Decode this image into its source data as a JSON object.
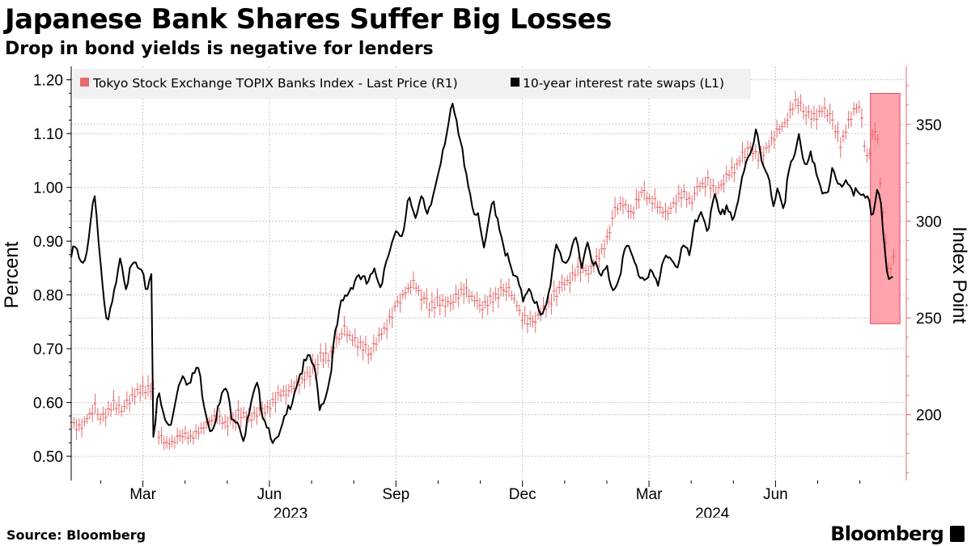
{
  "header": {
    "title": "Japanese Bank Shares Suffer Big Losses",
    "subtitle": "Drop in bond yields is negative for lenders"
  },
  "footer": {
    "source": "Source: Bloomberg",
    "brand": "Bloomberg"
  },
  "colors": {
    "swaps_line": "#000000",
    "banks_index": "#e8696b",
    "highlight_fill": "#ffa3ad",
    "highlight_stroke": "#e8485a",
    "right_axis": "#e8696b",
    "grid": "#c8c8c8",
    "legend_bg": "#f1f1f1"
  },
  "chart_data": {
    "type": "line",
    "title": "Japanese Bank Shares Suffer Big Losses",
    "subtitle": "Drop in bond yields is negative for lenders",
    "left_axis": {
      "label": "Percent",
      "ylim": [
        0.455,
        1.225
      ],
      "ticks": [
        0.5,
        0.6,
        0.7,
        0.8,
        0.9,
        1.0,
        1.1,
        1.2
      ],
      "tick_labels": [
        "0.50",
        "0.60",
        "0.70",
        "0.80",
        "0.90",
        "1.00",
        "1.10",
        "1.20"
      ]
    },
    "right_axis": {
      "label": "Index Point",
      "ylim": [
        166,
        380
      ],
      "ticks": [
        200,
        250,
        300,
        350
      ],
      "tick_labels": [
        "200",
        "250",
        "300",
        "350"
      ]
    },
    "x_axis": {
      "range_months": [
        0.3,
        20.1
      ],
      "month_ticks": [
        {
          "label": "Mar",
          "pos": 2.0
        },
        {
          "label": "Jun",
          "pos": 5.0
        },
        {
          "label": "Sep",
          "pos": 8.0
        },
        {
          "label": "Dec",
          "pos": 11.0
        },
        {
          "label": "Mar",
          "pos": 14.0
        },
        {
          "label": "Jun",
          "pos": 17.0
        }
      ],
      "year_labels": [
        {
          "label": "2023",
          "pos": 5.5
        },
        {
          "label": "2024",
          "pos": 15.5
        }
      ],
      "minor_ticks": [
        1,
        3,
        4,
        6,
        7,
        9,
        10,
        12,
        13,
        15,
        16,
        18,
        19
      ]
    },
    "legend": {
      "position": "top-left",
      "entries": [
        {
          "name": "Tokyo Stock Exchange TOPIX Banks Index - Last Price (R1)",
          "color": "#e8696b"
        },
        {
          "name": "10-year interest rate swaps (L1)",
          "color": "#000000"
        }
      ]
    },
    "highlight": {
      "x_from": 19.25,
      "x_to": 19.95,
      "y_low": 247,
      "y_high": 366,
      "axis": "right"
    },
    "series": [
      {
        "name": "10-year interest rate swaps (L1)",
        "axis": "left",
        "style": "line",
        "points": [
          [
            0.3,
            0.87
          ],
          [
            0.4,
            0.89
          ],
          [
            0.5,
            0.86
          ],
          [
            0.6,
            0.85
          ],
          [
            0.75,
            0.93
          ],
          [
            0.85,
            1.0
          ],
          [
            0.95,
            0.9
          ],
          [
            1.05,
            0.8
          ],
          [
            1.15,
            0.74
          ],
          [
            1.3,
            0.79
          ],
          [
            1.45,
            0.88
          ],
          [
            1.6,
            0.82
          ],
          [
            1.8,
            0.86
          ],
          [
            2.0,
            0.83
          ],
          [
            2.1,
            0.81
          ],
          [
            2.2,
            0.85
          ],
          [
            2.25,
            0.53
          ],
          [
            2.35,
            0.62
          ],
          [
            2.5,
            0.57
          ],
          [
            2.65,
            0.55
          ],
          [
            2.8,
            0.62
          ],
          [
            2.95,
            0.66
          ],
          [
            3.1,
            0.63
          ],
          [
            3.3,
            0.67
          ],
          [
            3.45,
            0.6
          ],
          [
            3.6,
            0.55
          ],
          [
            3.8,
            0.59
          ],
          [
            3.95,
            0.63
          ],
          [
            4.1,
            0.58
          ],
          [
            4.25,
            0.57
          ],
          [
            4.4,
            0.53
          ],
          [
            4.55,
            0.59
          ],
          [
            4.7,
            0.63
          ],
          [
            4.85,
            0.58
          ],
          [
            5.0,
            0.55
          ],
          [
            5.15,
            0.52
          ],
          [
            5.3,
            0.55
          ],
          [
            5.5,
            0.6
          ],
          [
            5.7,
            0.65
          ],
          [
            5.9,
            0.68
          ],
          [
            6.05,
            0.67
          ],
          [
            6.2,
            0.59
          ],
          [
            6.4,
            0.63
          ],
          [
            6.55,
            0.72
          ],
          [
            6.7,
            0.78
          ],
          [
            6.9,
            0.81
          ],
          [
            7.1,
            0.84
          ],
          [
            7.3,
            0.82
          ],
          [
            7.5,
            0.84
          ],
          [
            7.65,
            0.82
          ],
          [
            7.8,
            0.88
          ],
          [
            8.0,
            0.91
          ],
          [
            8.15,
            0.9
          ],
          [
            8.3,
            0.99
          ],
          [
            8.45,
            0.95
          ],
          [
            8.6,
            0.98
          ],
          [
            8.75,
            0.94
          ],
          [
            8.9,
            0.99
          ],
          [
            9.1,
            1.07
          ],
          [
            9.25,
            1.12
          ],
          [
            9.35,
            1.15
          ],
          [
            9.5,
            1.09
          ],
          [
            9.65,
            1.04
          ],
          [
            9.8,
            0.97
          ],
          [
            9.95,
            0.94
          ],
          [
            10.1,
            0.88
          ],
          [
            10.3,
            0.98
          ],
          [
            10.45,
            0.93
          ],
          [
            10.6,
            0.88
          ],
          [
            10.75,
            0.84
          ],
          [
            10.9,
            0.82
          ],
          [
            11.0,
            0.79
          ],
          [
            11.15,
            0.82
          ],
          [
            11.3,
            0.79
          ],
          [
            11.45,
            0.75
          ],
          [
            11.6,
            0.79
          ],
          [
            11.8,
            0.9
          ],
          [
            11.95,
            0.87
          ],
          [
            12.1,
            0.85
          ],
          [
            12.25,
            0.91
          ],
          [
            12.4,
            0.86
          ],
          [
            12.55,
            0.9
          ],
          [
            12.7,
            0.86
          ],
          [
            12.85,
            0.83
          ],
          [
            13.0,
            0.85
          ],
          [
            13.15,
            0.81
          ],
          [
            13.3,
            0.84
          ],
          [
            13.45,
            0.89
          ],
          [
            13.6,
            0.87
          ],
          [
            13.75,
            0.84
          ],
          [
            13.9,
            0.83
          ],
          [
            14.05,
            0.85
          ],
          [
            14.2,
            0.81
          ],
          [
            14.35,
            0.86
          ],
          [
            14.5,
            0.88
          ],
          [
            14.65,
            0.85
          ],
          [
            14.8,
            0.89
          ],
          [
            14.95,
            0.87
          ],
          [
            15.1,
            0.93
          ],
          [
            15.25,
            0.96
          ],
          [
            15.4,
            0.92
          ],
          [
            15.55,
            0.98
          ],
          [
            15.7,
            0.94
          ],
          [
            15.85,
            0.97
          ],
          [
            16.0,
            0.94
          ],
          [
            16.15,
            0.99
          ],
          [
            16.3,
            1.04
          ],
          [
            16.45,
            1.07
          ],
          [
            16.55,
            1.12
          ],
          [
            16.65,
            1.06
          ],
          [
            16.8,
            1.03
          ],
          [
            16.95,
            0.96
          ],
          [
            17.05,
            0.99
          ],
          [
            17.2,
            0.96
          ],
          [
            17.3,
            1.04
          ],
          [
            17.45,
            1.06
          ],
          [
            17.55,
            1.09
          ],
          [
            17.7,
            1.03
          ],
          [
            17.85,
            1.06
          ],
          [
            18.0,
            1.03
          ],
          [
            18.1,
            1.0
          ],
          [
            18.25,
            0.98
          ],
          [
            18.35,
            1.03
          ],
          [
            18.5,
            1.0
          ],
          [
            18.65,
            1.02
          ],
          [
            18.8,
            1.0
          ],
          [
            19.0,
            0.98
          ],
          [
            19.15,
            0.98
          ],
          [
            19.3,
            0.95
          ],
          [
            19.4,
            1.0
          ],
          [
            19.5,
            0.98
          ],
          [
            19.57,
            0.9
          ],
          [
            19.62,
            0.84
          ],
          [
            19.7,
            0.82
          ],
          [
            19.78,
            0.83
          ]
        ]
      },
      {
        "name": "Tokyo Stock Exchange TOPIX Banks Index - Last Price (R1)",
        "axis": "right",
        "style": "candles",
        "points": [
          [
            0.3,
            196
          ],
          [
            0.5,
            194
          ],
          [
            0.65,
            197
          ],
          [
            0.85,
            204
          ],
          [
            1.0,
            198
          ],
          [
            1.15,
            201
          ],
          [
            1.3,
            205
          ],
          [
            1.5,
            202
          ],
          [
            1.7,
            208
          ],
          [
            1.9,
            213
          ],
          [
            2.1,
            212
          ],
          [
            2.25,
            215
          ],
          [
            2.35,
            190
          ],
          [
            2.55,
            185
          ],
          [
            2.75,
            186
          ],
          [
            2.95,
            190
          ],
          [
            3.15,
            188
          ],
          [
            3.35,
            192
          ],
          [
            3.55,
            196
          ],
          [
            3.75,
            199
          ],
          [
            3.95,
            195
          ],
          [
            4.15,
            199
          ],
          [
            4.35,
            201
          ],
          [
            4.55,
            198
          ],
          [
            4.75,
            202
          ],
          [
            4.95,
            203
          ],
          [
            5.15,
            209
          ],
          [
            5.35,
            212
          ],
          [
            5.55,
            214
          ],
          [
            5.75,
            218
          ],
          [
            6.0,
            223
          ],
          [
            6.2,
            230
          ],
          [
            6.4,
            229
          ],
          [
            6.6,
            238
          ],
          [
            6.8,
            244
          ],
          [
            7.0,
            238
          ],
          [
            7.2,
            236
          ],
          [
            7.4,
            232
          ],
          [
            7.6,
            240
          ],
          [
            7.8,
            247
          ],
          [
            8.0,
            257
          ],
          [
            8.2,
            263
          ],
          [
            8.4,
            268
          ],
          [
            8.6,
            262
          ],
          [
            8.8,
            255
          ],
          [
            9.0,
            259
          ],
          [
            9.2,
            258
          ],
          [
            9.4,
            260
          ],
          [
            9.6,
            265
          ],
          [
            9.8,
            261
          ],
          [
            10.0,
            255
          ],
          [
            10.2,
            259
          ],
          [
            10.4,
            262
          ],
          [
            10.6,
            266
          ],
          [
            10.8,
            260
          ],
          [
            11.0,
            250
          ],
          [
            11.2,
            248
          ],
          [
            11.4,
            252
          ],
          [
            11.6,
            257
          ],
          [
            11.8,
            263
          ],
          [
            12.0,
            268
          ],
          [
            12.2,
            272
          ],
          [
            12.4,
            276
          ],
          [
            12.6,
            274
          ],
          [
            12.8,
            282
          ],
          [
            13.0,
            290
          ],
          [
            13.2,
            305
          ],
          [
            13.4,
            310
          ],
          [
            13.6,
            303
          ],
          [
            13.8,
            315
          ],
          [
            14.0,
            312
          ],
          [
            14.2,
            308
          ],
          [
            14.4,
            303
          ],
          [
            14.6,
            310
          ],
          [
            14.8,
            315
          ],
          [
            15.0,
            310
          ],
          [
            15.2,
            318
          ],
          [
            15.4,
            321
          ],
          [
            15.6,
            315
          ],
          [
            15.8,
            322
          ],
          [
            16.0,
            326
          ],
          [
            16.2,
            333
          ],
          [
            16.4,
            338
          ],
          [
            16.6,
            333
          ],
          [
            16.8,
            338
          ],
          [
            17.0,
            345
          ],
          [
            17.2,
            350
          ],
          [
            17.4,
            358
          ],
          [
            17.5,
            362
          ],
          [
            17.7,
            357
          ],
          [
            17.9,
            354
          ],
          [
            18.1,
            357
          ],
          [
            18.25,
            355
          ],
          [
            18.4,
            348
          ],
          [
            18.55,
            340
          ],
          [
            18.7,
            349
          ],
          [
            18.85,
            357
          ],
          [
            19.0,
            360
          ],
          [
            19.1,
            340
          ],
          [
            19.2,
            330
          ],
          [
            19.3,
            345
          ],
          [
            19.4,
            350
          ],
          [
            19.5,
            315
          ],
          [
            19.6,
            293
          ],
          [
            19.7,
            270
          ],
          [
            19.8,
            283
          ]
        ]
      }
    ]
  }
}
